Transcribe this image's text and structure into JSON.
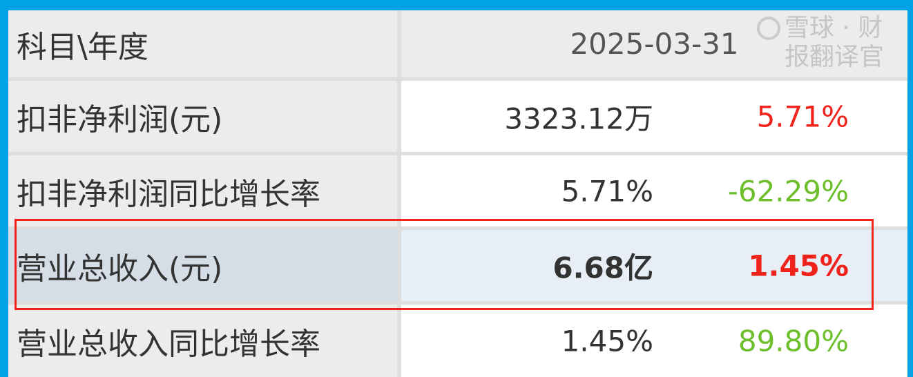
{
  "header": {
    "label": "科目\\年度",
    "period": "2025-03-31"
  },
  "rows": [
    {
      "label": "扣非净利润(元)",
      "value": "3323.12万",
      "change": "5.71%",
      "change_color": "#f0231c"
    },
    {
      "label": "扣非净利润同比增长率",
      "value": "5.71%",
      "change": "-62.29%",
      "change_color": "#6cbf2a"
    },
    {
      "label": "营业总收入(元)",
      "value": "6.68亿",
      "change": "1.45%",
      "change_color": "#f0231c",
      "highlighted": true
    },
    {
      "label": "营业总收入同比增长率",
      "value": "1.45%",
      "change": "89.80%",
      "change_color": "#6cbf2a"
    }
  ],
  "watermark": {
    "text": "雪球 · 财报翻译官",
    "icon": "snowball-logo-icon"
  },
  "colors": {
    "frame": "#00a3e6",
    "highlight_box": "#f0231c"
  }
}
